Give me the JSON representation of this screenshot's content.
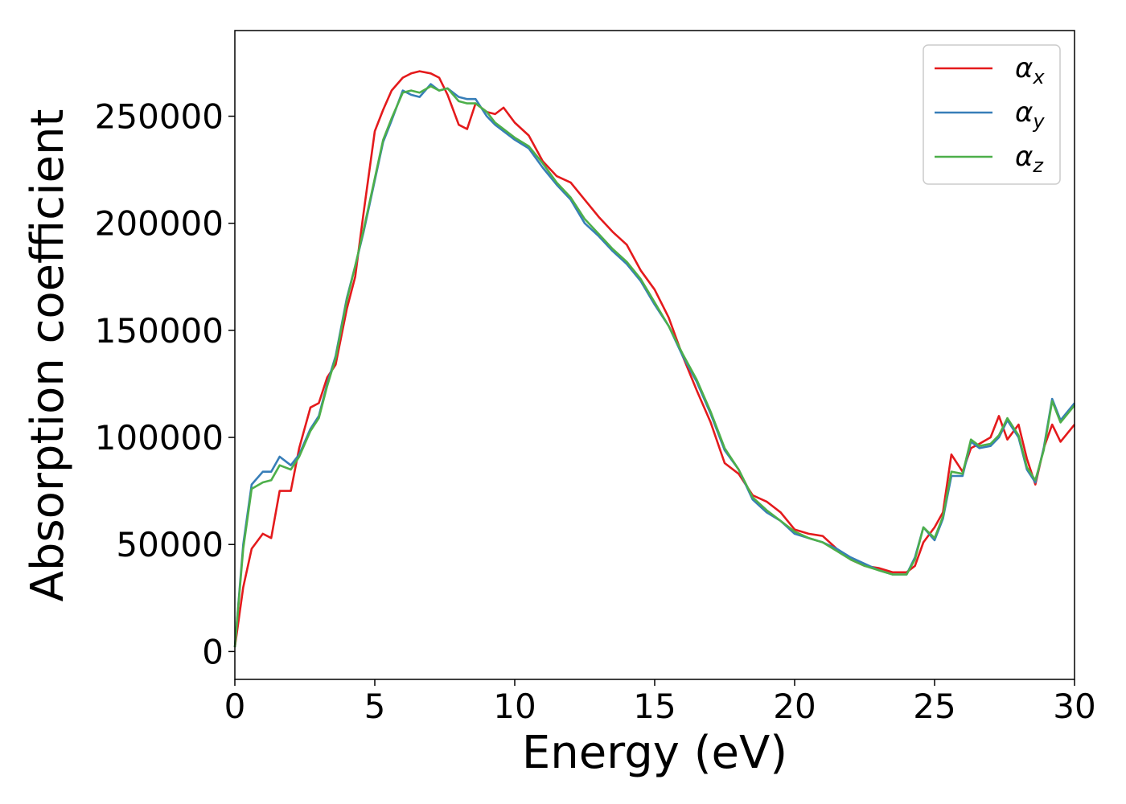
{
  "chart_data": {
    "type": "line",
    "title": "",
    "xlabel": "Energy (eV)",
    "ylabel": "Absorption coefficient",
    "xlim": [
      0,
      30
    ],
    "ylim": [
      -13000,
      290000
    ],
    "xticks": [
      0,
      5,
      10,
      15,
      20,
      25,
      30
    ],
    "yticks": [
      0,
      50000,
      100000,
      150000,
      200000,
      250000
    ],
    "grid": false,
    "legend_position": "top-right",
    "x": [
      0,
      0.3,
      0.6,
      1.0,
      1.3,
      1.6,
      2.0,
      2.3,
      2.7,
      3.0,
      3.3,
      3.6,
      4.0,
      4.3,
      4.6,
      5.0,
      5.3,
      5.6,
      6.0,
      6.3,
      6.6,
      7.0,
      7.3,
      7.6,
      8.0,
      8.3,
      8.6,
      9.0,
      9.3,
      9.6,
      10.0,
      10.5,
      11.0,
      11.5,
      12.0,
      12.5,
      13.0,
      13.5,
      14.0,
      14.5,
      15.0,
      15.5,
      16.0,
      16.5,
      17.0,
      17.5,
      18.0,
      18.5,
      19.0,
      19.5,
      20.0,
      20.5,
      21.0,
      21.5,
      22.0,
      22.5,
      23.0,
      23.5,
      24.0,
      24.3,
      24.6,
      25.0,
      25.3,
      25.6,
      26.0,
      26.3,
      26.6,
      27.0,
      27.3,
      27.6,
      28.0,
      28.3,
      28.6,
      28.9,
      29.2,
      29.5,
      30.0
    ],
    "series": [
      {
        "name": "αx",
        "color": "#e41a1c",
        "values": [
          2000,
          30000,
          48000,
          55000,
          53000,
          75000,
          75000,
          95000,
          114000,
          116000,
          128000,
          134000,
          160000,
          175000,
          205000,
          243000,
          253000,
          262000,
          268000,
          270000,
          271000,
          270000,
          268000,
          260000,
          246000,
          244000,
          256000,
          252000,
          251000,
          254000,
          247000,
          241000,
          229000,
          222000,
          219000,
          211000,
          203000,
          196000,
          190000,
          178000,
          169000,
          156000,
          138000,
          122000,
          107000,
          88000,
          83000,
          73000,
          70000,
          65000,
          57000,
          55000,
          54000,
          48000,
          43000,
          40000,
          39000,
          37000,
          37000,
          40000,
          51000,
          58000,
          65000,
          92000,
          84000,
          95000,
          97000,
          100000,
          110000,
          99000,
          106000,
          90000,
          78000,
          95000,
          106000,
          98000,
          106000
        ]
      },
      {
        "name": "αy",
        "color": "#377eb8",
        "values": [
          2000,
          50000,
          78000,
          84000,
          84000,
          91000,
          87000,
          92000,
          104000,
          110000,
          125000,
          138000,
          165000,
          180000,
          196000,
          220000,
          238000,
          248000,
          262000,
          260000,
          259000,
          265000,
          262000,
          263000,
          259000,
          258000,
          258000,
          250000,
          246000,
          243000,
          239000,
          235000,
          226000,
          218000,
          211000,
          200000,
          194000,
          187000,
          181000,
          173000,
          162000,
          152000,
          138000,
          126000,
          111000,
          94000,
          85000,
          71000,
          65000,
          61000,
          55000,
          53000,
          51000,
          48000,
          44000,
          41000,
          38000,
          36000,
          36000,
          44000,
          58000,
          52000,
          62000,
          82000,
          82000,
          98000,
          95000,
          96000,
          100000,
          108000,
          100000,
          85000,
          79000,
          95000,
          118000,
          108000,
          116000
        ]
      },
      {
        "name": "αz",
        "color": "#4daf4a",
        "values": [
          2000,
          48000,
          76000,
          79000,
          80000,
          87000,
          85000,
          91000,
          103000,
          109000,
          124000,
          137000,
          164000,
          180000,
          197000,
          221000,
          239000,
          249000,
          261000,
          262000,
          261000,
          264000,
          262000,
          263000,
          257000,
          256000,
          256000,
          252000,
          247000,
          244000,
          240000,
          236000,
          228000,
          219000,
          212000,
          202000,
          195000,
          188000,
          182000,
          174000,
          163000,
          152000,
          139000,
          127000,
          112000,
          95000,
          85000,
          72000,
          66000,
          61000,
          56000,
          53000,
          51000,
          47000,
          43000,
          40000,
          38000,
          36000,
          36000,
          43000,
          58000,
          53000,
          63000,
          84000,
          83000,
          99000,
          96000,
          97000,
          101000,
          109000,
          101000,
          86000,
          80000,
          94000,
          117000,
          107000,
          115000
        ]
      }
    ],
    "legend": [
      {
        "symbol": "α",
        "subscript": "x",
        "color": "#e41a1c"
      },
      {
        "symbol": "α",
        "subscript": "y",
        "color": "#377eb8"
      },
      {
        "symbol": "α",
        "subscript": "z",
        "color": "#4daf4a"
      }
    ]
  }
}
